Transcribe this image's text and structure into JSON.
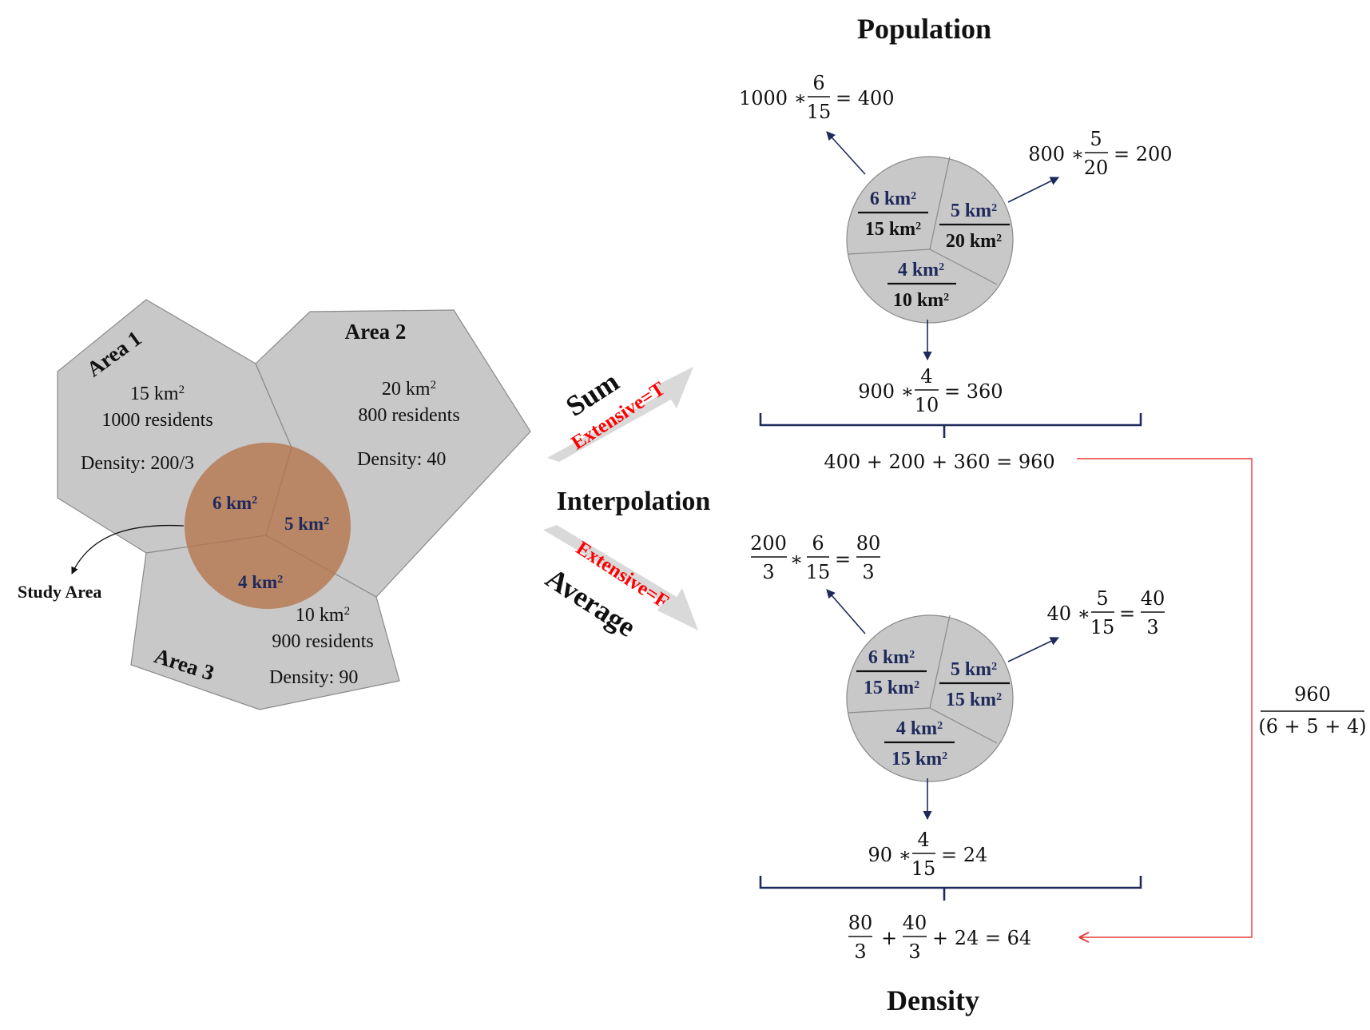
{
  "titles": {
    "population": "Population",
    "density": "Density",
    "interpolation": "Interpolation",
    "sum": "Sum",
    "average": "Average",
    "extensive_true": "Extensive=T",
    "extensive_false": "Extensive=F"
  },
  "map": {
    "area1": {
      "name": "Area 1",
      "size": "15 km",
      "residents": "1000 residents",
      "density": "Density: 200/3"
    },
    "area2": {
      "name": "Area 2",
      "size": "20 km",
      "residents": "800 residents",
      "density": "Density: 40"
    },
    "area3": {
      "name": "Area 3",
      "size": "10 km",
      "residents": "900 residents",
      "density": "Density: 90"
    },
    "study_area": "Study Area",
    "overlaps": {
      "a1": "6 km",
      "a2": "5 km",
      "a3": "4 km"
    },
    "sup2": "2"
  },
  "population": {
    "pie": {
      "a1_num": "6 km",
      "a1_den": "15 km",
      "a2_num": "5 km",
      "a2_den": "20 km",
      "a3_num": "4 km",
      "a3_den": "10 km"
    },
    "eq1": {
      "left": "1000 ∗",
      "num": "6",
      "den": "15",
      "right": "= 400"
    },
    "eq2": {
      "left": "800 ∗",
      "num": "5",
      "den": "20",
      "right": "= 200"
    },
    "eq3": {
      "left": "900 ∗",
      "num": "4",
      "den": "10",
      "right": "= 360"
    },
    "total": "400 + 200 + 360 = 960"
  },
  "density": {
    "pie": {
      "a1_num": "6 km",
      "a1_den": "15 km",
      "a2_num": "5 km",
      "a2_den": "15 km",
      "a3_num": "4 km",
      "a3_den": "15 km"
    },
    "eq1": {
      "n1": "200",
      "d1": "3",
      "op": "∗",
      "n2": "6",
      "d2": "15",
      "eq": "=",
      "n3": "80",
      "d3": "3"
    },
    "eq2": {
      "left": "40 ∗",
      "n2": "5",
      "d2": "15",
      "eq": "=",
      "n3": "40",
      "d3": "3"
    },
    "eq3": {
      "left": "90 ∗",
      "num": "4",
      "den": "15",
      "right": "= 24"
    },
    "total": {
      "n1": "80",
      "d1": "3",
      "plus": "+",
      "n2": "40",
      "d2": "3",
      "rest": "+ 24 = 64"
    }
  },
  "conversion": {
    "num": "960",
    "den": "(6 + 5 + 4)"
  },
  "colors": {
    "region_fill": "#c8c8c8",
    "study_area": "#b5734a",
    "navy": "#1f2a5c",
    "red": "#ff0000",
    "connector": "#e53935",
    "arrow_gray": "#d9d9d9"
  }
}
